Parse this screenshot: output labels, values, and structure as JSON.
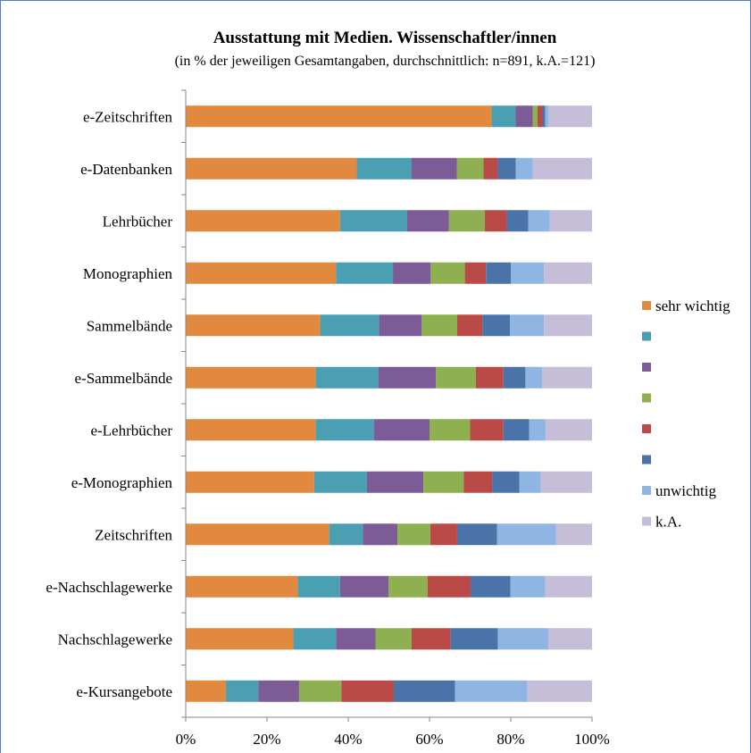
{
  "chart_data": {
    "type": "bar",
    "orientation": "horizontal",
    "stacked": true,
    "percent_stacked": true,
    "title": "Ausstattung mit Medien. Wissenschaftler/innen",
    "subtitle": "(in % der jeweiligen Gesamtangaben, durchschnittlich: n=891, k.A.=121)",
    "categories": [
      "e-Zeitschriften",
      "e-Datenbanken",
      "Lehrbücher",
      "Monographien",
      "Sammelbände",
      "e-Sammelbände",
      "e-Lehrbücher",
      "e-Monographien",
      "Zeitschriften",
      "e-Nachschlagewerke",
      "Nachschlagewerke",
      "e-Kursangebote"
    ],
    "x_ticks": [
      "0%",
      "20%",
      "40%",
      "60%",
      "80%",
      "100%"
    ],
    "xlim": [
      0,
      100
    ],
    "grid": false,
    "legend_position": "right",
    "series": [
      {
        "name": "sehr wichtig",
        "color": "#e0893f",
        "values": [
          75.3,
          42.1,
          38.0,
          37.0,
          33.1,
          32.0,
          32.0,
          31.6,
          35.3,
          27.6,
          26.5,
          9.9
        ]
      },
      {
        "name": "",
        "color": "#4a9fb2",
        "values": [
          5.9,
          13.5,
          16.5,
          14.0,
          14.5,
          15.4,
          14.3,
          13.0,
          8.3,
          10.4,
          10.5,
          8.0
        ]
      },
      {
        "name": "",
        "color": "#7c5b96",
        "values": [
          4.2,
          11.1,
          10.3,
          9.3,
          10.5,
          14.2,
          13.7,
          13.9,
          8.5,
          11.9,
          9.7,
          10.0
        ]
      },
      {
        "name": "",
        "color": "#8fb050",
        "values": [
          1.2,
          6.6,
          8.8,
          8.4,
          8.7,
          9.8,
          10.0,
          9.9,
          8.1,
          9.6,
          8.9,
          10.4
        ]
      },
      {
        "name": "",
        "color": "#b94a48",
        "values": [
          1.2,
          3.5,
          5.4,
          5.2,
          6.2,
          6.8,
          8.2,
          7.0,
          6.6,
          10.6,
          9.6,
          12.9
        ]
      },
      {
        "name": "",
        "color": "#4a74a9",
        "values": [
          0.7,
          4.4,
          5.3,
          6.1,
          6.8,
          5.4,
          6.3,
          6.7,
          9.8,
          9.8,
          11.6,
          15.1
        ]
      },
      {
        "name": "unwichtig",
        "color": "#8fb5e2",
        "values": [
          0.8,
          4.2,
          5.3,
          8.2,
          8.4,
          4.1,
          4.1,
          5.3,
          14.5,
          8.6,
          12.5,
          17.8
        ]
      },
      {
        "name": "k.A.",
        "color": "#c6bdd8",
        "values": [
          10.7,
          14.6,
          10.4,
          11.8,
          11.8,
          12.3,
          11.4,
          12.6,
          8.9,
          11.5,
          10.7,
          15.9
        ]
      }
    ]
  }
}
